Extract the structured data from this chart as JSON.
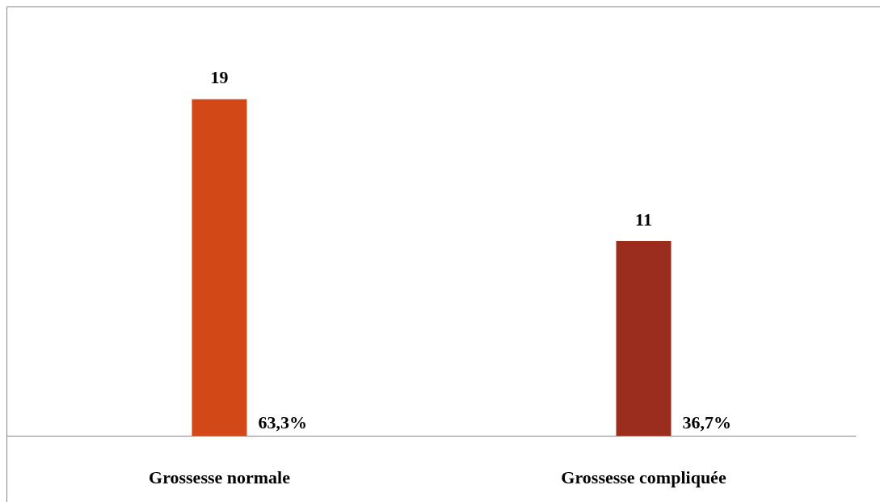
{
  "chart_data": {
    "type": "bar",
    "categories": [
      "Grossesse normale",
      "Grossesse compliquée"
    ],
    "values": [
      19,
      11
    ],
    "colors": [
      "#d34817",
      "#9b2d1f"
    ],
    "data_labels": true,
    "annotations": [
      {
        "text": "63,3%",
        "x": "Grossesse normale",
        "y": 0
      },
      {
        "text": "36,7%",
        "x": "Grossesse compliquée",
        "y": 0
      }
    ]
  }
}
